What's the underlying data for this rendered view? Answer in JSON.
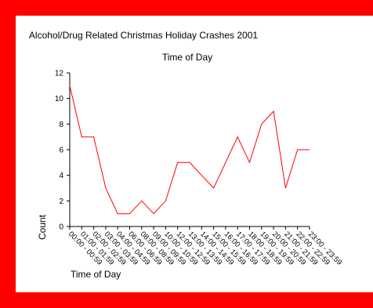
{
  "chart_data": {
    "type": "line",
    "title": "Alcohol/Drug Related Christmas Holiday Crashes 2001",
    "subtitle": "Time of Day",
    "xlabel": "Time of Day",
    "ylabel": "Count",
    "ylim": [
      0,
      12
    ],
    "yticks": [
      0,
      2,
      4,
      6,
      8,
      10,
      12
    ],
    "grid": false,
    "categories": [
      "00:00 - 00:59",
      "01:00 - 01:59",
      "02:00 - 02:59",
      "03:00 - 03:59",
      "04:00 - 04:59",
      "06:00 - 06:59",
      "08:00 - 08:59",
      "09:00 - 09:59",
      "10:00 - 10:59",
      "12:00 - 12:59",
      "13:00 - 13:59",
      "14:00 - 14:59",
      "15:00 - 15:59",
      "16:00 - 16:59",
      "17:00 - 17:59",
      "18:00 - 18:59",
      "19:00 - 19:59",
      "20:00 - 20:59",
      "21:00 - 21:59",
      "22:00 - 22:59",
      "23:00 - 23:59"
    ],
    "series": [
      {
        "values": [
          11,
          7,
          7,
          3,
          1,
          1,
          2,
          1,
          2,
          5,
          5,
          4,
          3,
          5,
          7,
          5,
          8,
          9,
          3,
          6,
          6
        ],
        "color": "#ff0000"
      }
    ]
  },
  "colors": {
    "border": "#ff0000",
    "line": "#ff0000",
    "axis": "#000000"
  }
}
